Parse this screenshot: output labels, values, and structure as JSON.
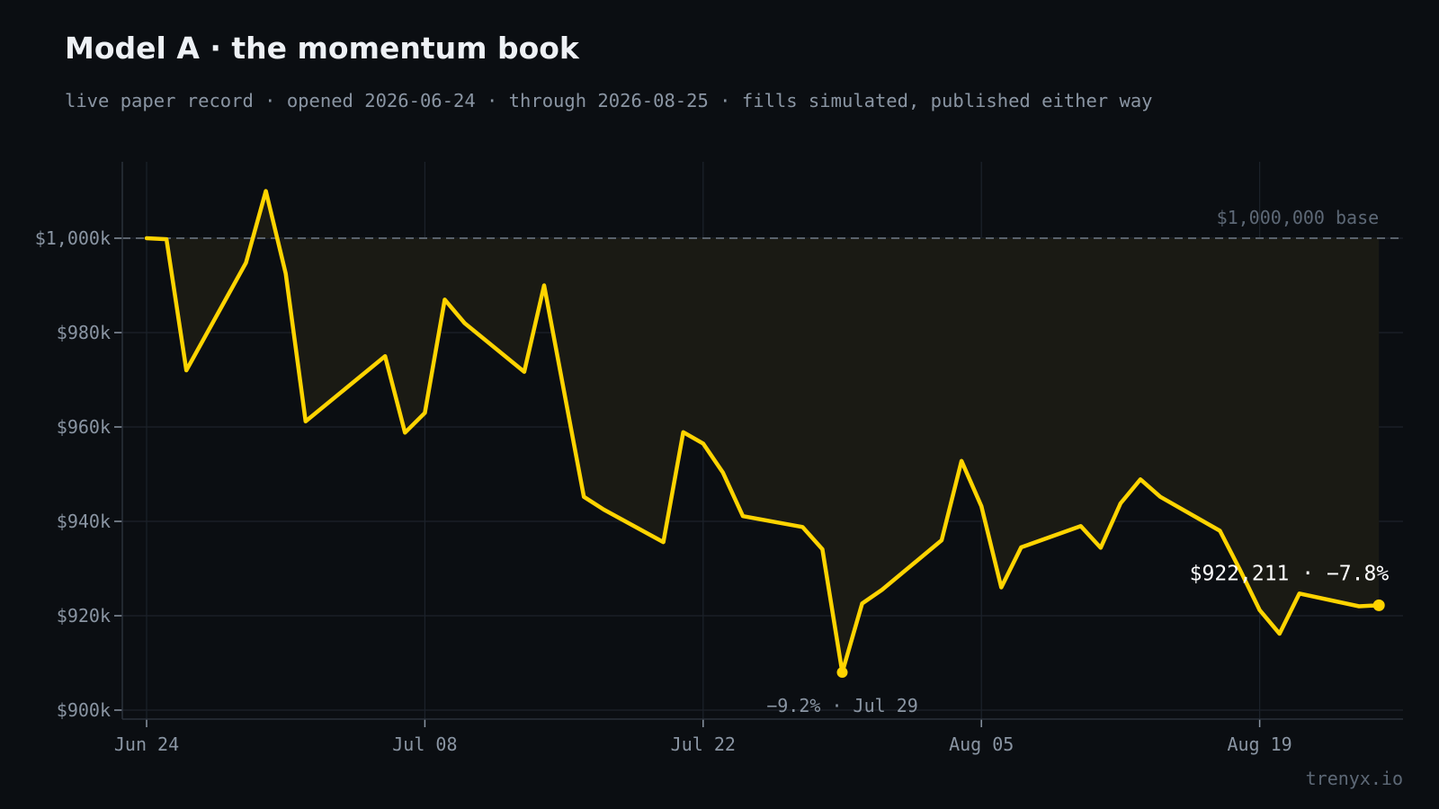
{
  "header": {
    "title": "Model A · the momentum book",
    "subtitle": "live paper record · opened 2026-06-24 · through 2026-08-25 · fills simulated, published either way"
  },
  "footer": {
    "watermark": "trenyx.io"
  },
  "chart_data": {
    "type": "line",
    "title": "Model A · the momentum book",
    "subtitle": "live paper record · opened 2026-06-24 · through 2026-08-25 · fills simulated, published either way",
    "xlabel": "",
    "ylabel": "",
    "x_ticks": [
      "Jun 24",
      "Jul 08",
      "Jul 22",
      "Aug 05",
      "Aug 19"
    ],
    "y_ticks": [
      "$900k",
      "$920k",
      "$940k",
      "$960k",
      "$980k",
      "$1,000k"
    ],
    "ylim": [
      900000,
      1016000
    ],
    "grid": true,
    "colors": {
      "line": "#ffd400",
      "fill": "#1a1a14",
      "grid": "#1c222b",
      "base": "#5a626c"
    },
    "baseline": {
      "value": 1000000,
      "label": "$1,000,000 base"
    },
    "series": [
      {
        "x": [
          "2026-06-24",
          "2026-06-25",
          "2026-06-26",
          "2026-06-29",
          "2026-06-30",
          "2026-07-01",
          "2026-07-02",
          "2026-07-06",
          "2026-07-07",
          "2026-07-08",
          "2026-07-09",
          "2026-07-10",
          "2026-07-13",
          "2026-07-14",
          "2026-07-16",
          "2026-07-17",
          "2026-07-20",
          "2026-07-21",
          "2026-07-22",
          "2026-07-23",
          "2026-07-24",
          "2026-07-27",
          "2026-07-28",
          "2026-07-29",
          "2026-07-30",
          "2026-07-31",
          "2026-08-03",
          "2026-08-04",
          "2026-08-05",
          "2026-08-06",
          "2026-08-07",
          "2026-08-10",
          "2026-08-11",
          "2026-08-12",
          "2026-08-13",
          "2026-08-14",
          "2026-08-17",
          "2026-08-18",
          "2026-08-19",
          "2026-08-20",
          "2026-08-21",
          "2026-08-24",
          "2026-08-25"
        ],
        "values": [
          1000000,
          999800,
          972000,
          994800,
          1010000,
          992500,
          961200,
          975000,
          958800,
          963000,
          987000,
          982000,
          971700,
          990000,
          945200,
          942500,
          935600,
          958900,
          956500,
          950300,
          941100,
          938800,
          934100,
          908000,
          922600,
          925500,
          936000,
          952800,
          943200,
          926000,
          934500,
          939000,
          934400,
          943800,
          948900,
          945200,
          938000,
          929800,
          921200,
          916200,
          924700,
          922000,
          922211
        ]
      }
    ],
    "annotations": [
      {
        "type": "min",
        "x": "2026-07-29",
        "value": 908000,
        "label": "−9.2% · Jul 29"
      },
      {
        "type": "last",
        "x": "2026-08-25",
        "value": 922211,
        "label": "$922,211 · −7.8%"
      }
    ]
  }
}
